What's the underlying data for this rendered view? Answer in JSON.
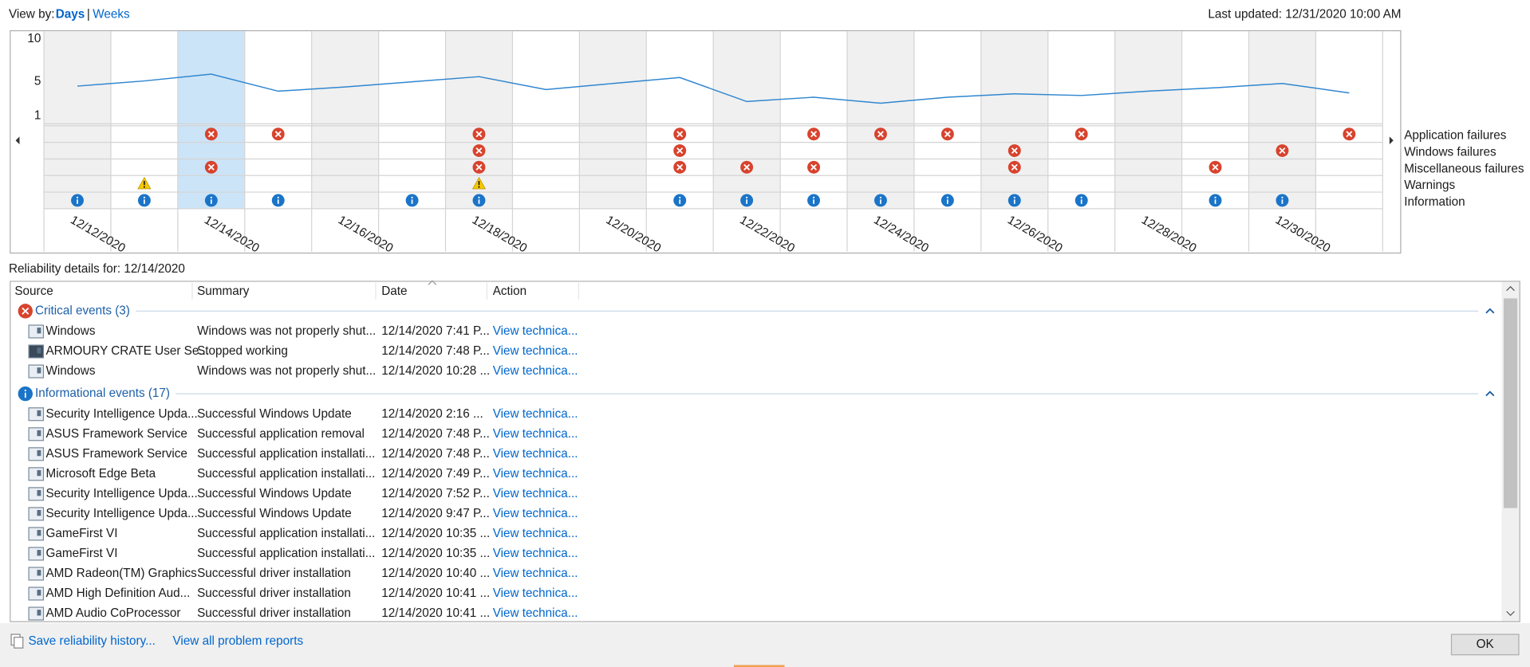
{
  "header": {
    "view_by": "View by:",
    "days": "Days",
    "separator": "|",
    "weeks": "Weeks",
    "last_updated": "Last updated: 12/31/2020 10:00 AM"
  },
  "chart_data": {
    "type": "reliability",
    "categories": [
      "12/12/2020",
      null,
      "12/14/2020",
      null,
      "12/16/2020",
      null,
      "12/18/2020",
      null,
      "12/20/2020",
      null,
      "12/22/2020",
      null,
      "12/24/2020",
      null,
      "12/26/2020",
      null,
      "12/28/2020",
      null,
      "12/30/2020",
      null
    ],
    "values": [
      4.5,
      5.1,
      5.9,
      3.9,
      4.4,
      5.0,
      5.6,
      4.1,
      4.8,
      5.5,
      2.7,
      3.2,
      2.5,
      3.2,
      3.6,
      3.4,
      3.9,
      4.3,
      4.8,
      3.7
    ],
    "color": "#2f86d0",
    "ylim": [
      1,
      10
    ],
    "yticks": [
      1,
      5,
      10
    ],
    "selected": 2,
    "event_rows": [
      {
        "name": "Application failures",
        "kind": "critical",
        "values": [
          0,
          0,
          1,
          1,
          0,
          0,
          1,
          0,
          0,
          1,
          0,
          1,
          1,
          1,
          0,
          1,
          0,
          0,
          0,
          1
        ]
      },
      {
        "name": "Windows failures",
        "kind": "critical",
        "values": [
          0,
          0,
          0,
          0,
          0,
          0,
          1,
          0,
          0,
          1,
          0,
          0,
          0,
          0,
          1,
          0,
          0,
          0,
          1,
          0
        ]
      },
      {
        "name": "Miscellaneous failures",
        "kind": "critical",
        "values": [
          0,
          0,
          1,
          0,
          0,
          0,
          1,
          0,
          0,
          1,
          1,
          1,
          0,
          0,
          1,
          0,
          0,
          1,
          0,
          0
        ]
      },
      {
        "name": "Warnings",
        "kind": "warning",
        "values": [
          0,
          1,
          0,
          0,
          0,
          0,
          1,
          0,
          0,
          0,
          0,
          0,
          0,
          0,
          0,
          0,
          0,
          0,
          0,
          0
        ]
      },
      {
        "name": "Information",
        "kind": "info",
        "values": [
          1,
          1,
          1,
          1,
          0,
          1,
          1,
          0,
          0,
          1,
          1,
          1,
          1,
          1,
          1,
          1,
          0,
          1,
          1,
          0
        ]
      }
    ]
  },
  "details": {
    "title": "Reliability details for: 12/14/2020",
    "columns": [
      "Source",
      "Summary",
      "Date",
      "Action"
    ],
    "groups": [
      {
        "kind": "critical",
        "label": "Critical events (3)",
        "rows": [
          [
            "Windows",
            "Windows was not properly shut...",
            "12/14/2020 7:41 P...",
            "View technica..."
          ],
          [
            "ARMOURY CRATE User Se...",
            "Stopped working",
            "12/14/2020 7:48 P...",
            "View technica..."
          ],
          [
            "Windows",
            "Windows was not properly shut...",
            "12/14/2020 10:28 ...",
            "View technica..."
          ]
        ]
      },
      {
        "kind": "info",
        "label": "Informational events (17)",
        "rows": [
          [
            "Security Intelligence Upda...",
            "Successful Windows Update",
            "12/14/2020 2:16 ...",
            "View technica..."
          ],
          [
            "ASUS Framework Service",
            "Successful application removal",
            "12/14/2020 7:48 P...",
            "View technica..."
          ],
          [
            "ASUS Framework Service",
            "Successful application installati...",
            "12/14/2020 7:48 P...",
            "View technica..."
          ],
          [
            "Microsoft Edge Beta",
            "Successful application installati...",
            "12/14/2020 7:49 P...",
            "View technica..."
          ],
          [
            "Security Intelligence Upda...",
            "Successful Windows Update",
            "12/14/2020 7:52 P...",
            "View technica..."
          ],
          [
            "Security Intelligence Upda...",
            "Successful Windows Update",
            "12/14/2020 9:47 P...",
            "View technica..."
          ],
          [
            "GameFirst VI",
            "Successful application installati...",
            "12/14/2020 10:35 ...",
            "View technica..."
          ],
          [
            "GameFirst VI",
            "Successful application installati...",
            "12/14/2020 10:35 ...",
            "View technica..."
          ],
          [
            "AMD Radeon(TM) Graphics",
            "Successful driver installation",
            "12/14/2020 10:40 ...",
            "View technica..."
          ],
          [
            "AMD High Definition Aud...",
            "Successful driver installation",
            "12/14/2020 10:41 ...",
            "View technica..."
          ],
          [
            "AMD Audio CoProcessor",
            "Successful driver installation",
            "12/14/2020 10:41 ...",
            "View technica..."
          ]
        ]
      }
    ]
  },
  "footer": {
    "save": "Save reliability history...",
    "view_reports": "View all problem reports",
    "ok": "OK"
  }
}
